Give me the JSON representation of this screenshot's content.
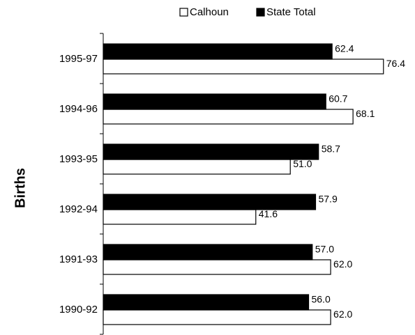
{
  "chart_data": {
    "type": "hbar",
    "ylabel": "Births",
    "categories": [
      "1995-97",
      "1994-96",
      "1993-95",
      "1992-94",
      "1991-93",
      "1990-92"
    ],
    "series": [
      {
        "name": "Calhoun",
        "color": "#ffffff",
        "values": [
          76.4,
          68.1,
          51.0,
          41.6,
          62.0,
          62.0
        ],
        "value_labels": [
          "76.4",
          "68.1",
          "51.0",
          "41.6",
          "62.0",
          "62.0"
        ]
      },
      {
        "name": "State Total",
        "color": "#000000",
        "values": [
          62.4,
          60.7,
          58.7,
          57.9,
          57.0,
          56.0
        ],
        "value_labels": [
          "62.4",
          "60.7",
          "58.7",
          "57.9",
          "57.0",
          "56.0"
        ]
      }
    ],
    "xlim": [
      0,
      85
    ],
    "legend": "top"
  }
}
